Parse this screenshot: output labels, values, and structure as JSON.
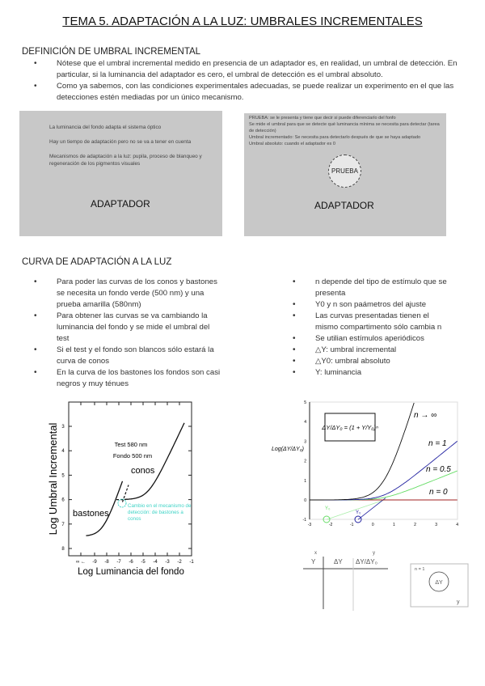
{
  "title": "TEMA 5. ADAPTACIÓN A LA LUZ: UMBRALES INCREMENTALES",
  "section1": {
    "heading": "DEFINICIÓN DE UMBRAL INCREMENTAL",
    "bullets": [
      "Nótese que el umbral incremental medido en presencia de un adaptador es, en realidad, un umbral de detección. En particular, si la luminancia del adaptador es cero, el umbral de detección es el umbral absoluto.",
      "Como ya sabemos, con las condiciones experimentales adecuadas, se puede realizar un experimento en el que las detecciones estén mediadas por un único mecanismo."
    ]
  },
  "box_left": {
    "lines": [
      "La luminancia del fondo adapta el sistema óptico",
      "Hay un tiempo de adaptación pero no se va a tener en cuenta",
      "Mecanismos de adaptación a la luz: pupila, proceso de blanqueo y regeneración de los pigmentos visuales"
    ],
    "label": "ADAPTADOR"
  },
  "box_right": {
    "lines": [
      "PRUEBA: se le presenta y tiene que decir si puede diferenciarlo del fonfo",
      "Se mide el umbral para que se detecte qué luminancia mínima se necesita para detectar (tarea de detección)",
      "Umbral incrementado: Se necesita para detectarlo después de que se haya adaptado",
      "Umbral absoluto: cuando el adaptador es 0"
    ],
    "circle": "PRUEBA",
    "label": "ADAPTADOR"
  },
  "section2": {
    "heading": "CURVA DE ADAPTACIÓN A LA LUZ",
    "left_bullets": [
      "Para poder las curvas de los conos y bastones se necesita un fondo verde (500 nm) y una prueba amarilla (580nm)",
      "Para obtener las curvas se va cambiando la luminancia del fondo y se mide el umbral del test",
      "Si el test y el fondo son blancos sólo estará la curva de conos",
      "En la curva de los bastones los fondos son casi negros y muy ténues"
    ],
    "right_bullets": [
      "n depende del tipo de estímulo que se presenta",
      "Y0 y n son paámetros del ajuste",
      "Las curvas presentadas tienen el mismo compartimento sólo cambia n",
      "Se utilian estímulos aperiódicos",
      "△Y: umbral incremental",
      "△Y0: umbral absoluto",
      "Y: luminancia"
    ]
  },
  "chart_data": [
    {
      "type": "line",
      "xlabel": "Log Luminancia del fondo",
      "ylabel": "Log Umbral Incremental",
      "xticks": [
        "∞ ←",
        "-9",
        "-8",
        "-7",
        "-6",
        "-5",
        "-4",
        "-3",
        "-2",
        "-1"
      ],
      "yticks": [
        "3",
        "4",
        "5",
        "6",
        "7",
        "8"
      ],
      "annotations": {
        "test": "Test 580 nm",
        "fondo": "Fondo 500 nm",
        "conos": "conos",
        "bastones": "bastones",
        "cambio": "Cambio en el mecanismo de detección: de bastones a conos"
      },
      "accent": "#3fd3c6"
    },
    {
      "type": "line",
      "ylabel": "Log(ΔY/ΔY₀)",
      "formula": "ΔY/ΔY₀ = (1 + Y/Y₀)ⁿ",
      "xlim": [
        -3,
        4
      ],
      "ylim": [
        -1,
        5
      ],
      "xticks": [
        "-3",
        "-2",
        "-1",
        "0",
        "1",
        "2",
        "3",
        "4"
      ],
      "yticks": [
        "-1",
        "0",
        "1",
        "2",
        "3",
        "4",
        "5"
      ],
      "series": [
        {
          "name": "n → ∞",
          "color": "#111111"
        },
        {
          "name": "n = 1",
          "color": "#2020a0"
        },
        {
          "name": "n = 0.5",
          "color": "#66dd66"
        },
        {
          "name": "n = 0",
          "color": "#a02020"
        }
      ],
      "marks": {
        "y0_green": "Y₀",
        "y0_blue": "Y₀"
      }
    }
  ],
  "sketch": {
    "col1_top": "x",
    "col1": "Y",
    "col2": "ΔY",
    "col3_top": "y",
    "col3": "ΔY/ΔY₀",
    "box_label": "n = 1",
    "circle": "ΔY",
    "axis": "y"
  }
}
